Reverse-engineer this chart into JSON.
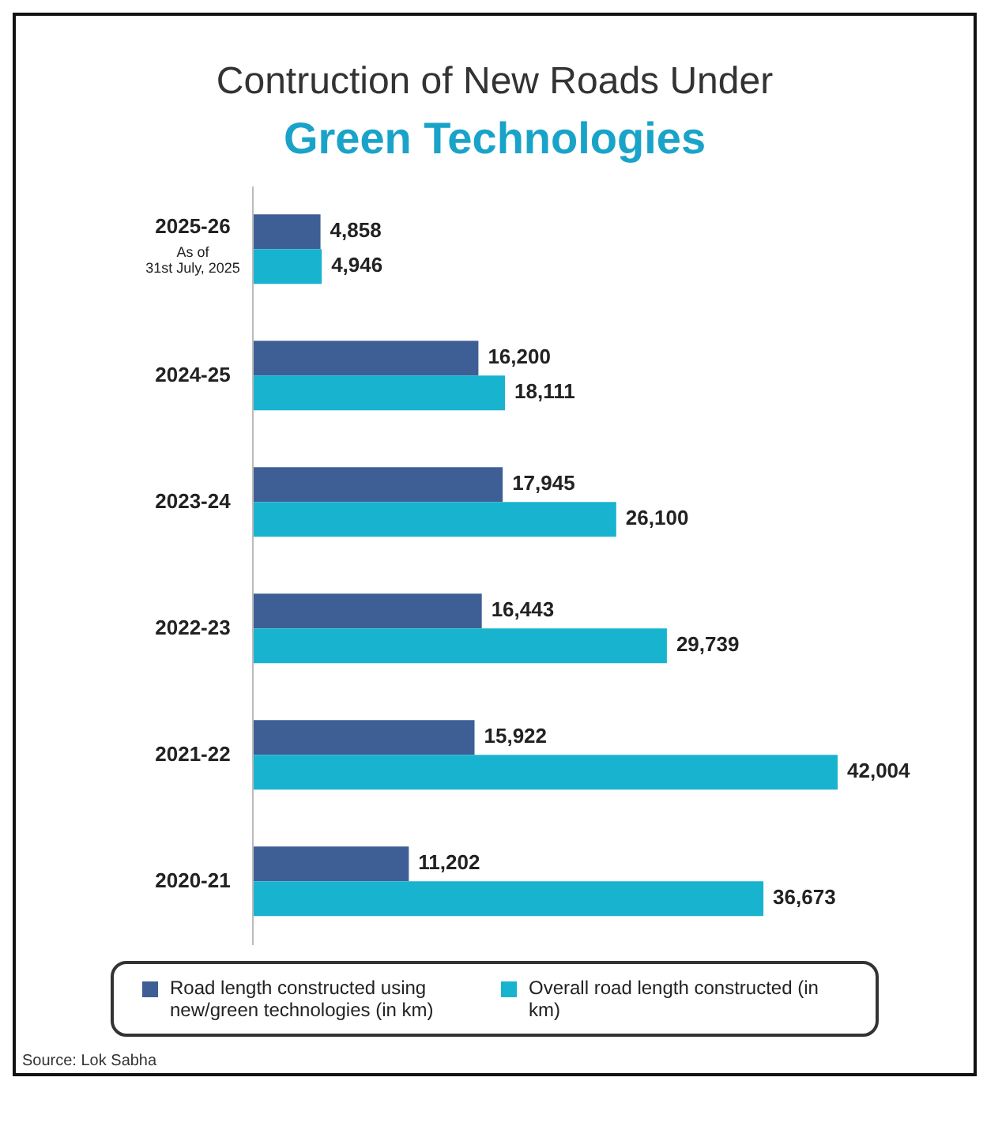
{
  "chart_data": {
    "type": "bar",
    "orientation": "horizontal",
    "title": "Contruction of New Roads Under",
    "subtitle": "Green Technologies",
    "categories": [
      "2025-26\nAs of\n31st July, 2025",
      "2024-25",
      "2023-24",
      "2022-23",
      "2021-22",
      "2020-21"
    ],
    "series": [
      {
        "name": "Road length constructed using new/green technologies (in km)",
        "color": "#3e5f95",
        "values": [
          4858,
          16200,
          17945,
          16443,
          15922,
          11202
        ],
        "value_labels": [
          "4,858",
          "16,200",
          "17,945",
          "16,443",
          "15,922",
          "11,202"
        ]
      },
      {
        "name": "Overall road length constructed (in km)",
        "color": "#18b3cf",
        "values": [
          4946,
          18111,
          26100,
          29739,
          42004,
          36673
        ],
        "value_labels": [
          "4,946",
          "18,111",
          "26,100",
          "29,739",
          "42,004",
          "36,673"
        ]
      }
    ],
    "legend": "bottom",
    "tick_labels": "y",
    "annotations": [
      "Source: Lok Sabha"
    ]
  }
}
